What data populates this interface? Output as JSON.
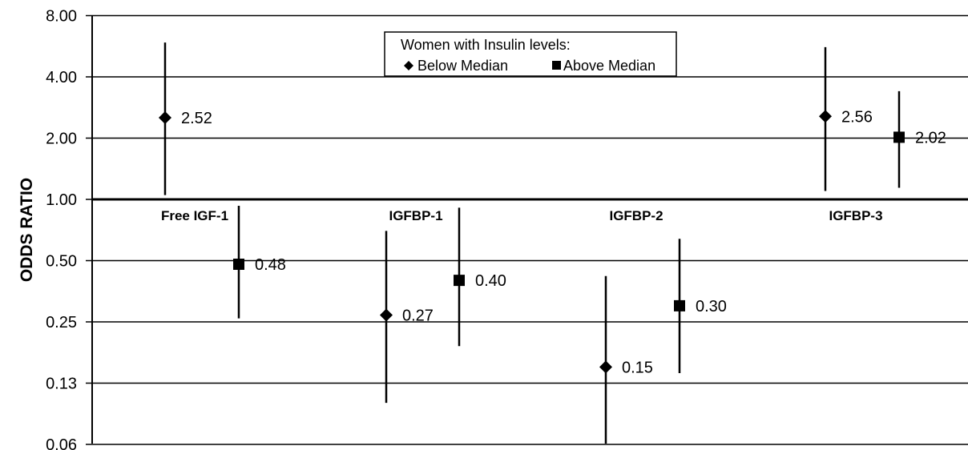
{
  "chart_data": {
    "type": "scatter",
    "ylabel": "ODDS RATIO",
    "yscale": "log",
    "ylim": [
      0.06,
      8.0
    ],
    "y_reference_line": 1.0,
    "y_ticks": [
      8.0,
      4.0,
      2.0,
      1.0,
      0.5,
      0.25,
      0.13,
      0.06
    ],
    "y_tick_labels": [
      "8.00",
      "4.00",
      "2.00",
      "1.00",
      "0.50",
      "0.25",
      "0.13",
      "0.06"
    ],
    "grid": true,
    "categories": [
      "Free IGF-1",
      "IGFBP-1",
      "IGFBP-2",
      "IGFBP-3"
    ],
    "legend": {
      "title": "Women with Insulin levels:",
      "entries": [
        "Below Median",
        "Above Median"
      ],
      "placement": "top-center"
    },
    "series": [
      {
        "name": "Below Median",
        "marker": "diamond",
        "points": [
          {
            "category": "Free IGF-1",
            "value": 2.52,
            "label": "2.52",
            "ci": [
              1.05,
              5.9
            ]
          },
          {
            "category": "IGFBP-1",
            "value": 0.27,
            "label": "0.27",
            "ci": [
              0.1,
              0.7
            ]
          },
          {
            "category": "IGFBP-2",
            "value": 0.15,
            "label": "0.15",
            "ci": [
              0.06,
              0.42
            ]
          },
          {
            "category": "IGFBP-3",
            "value": 2.56,
            "label": "2.56",
            "ci": [
              1.1,
              5.6
            ]
          }
        ]
      },
      {
        "name": "Above Median",
        "marker": "square",
        "points": [
          {
            "category": "Free IGF-1",
            "value": 0.48,
            "label": "0.48",
            "ci": [
              0.26,
              0.93
            ]
          },
          {
            "category": "IGFBP-1",
            "value": 0.4,
            "label": "0.40",
            "ci": [
              0.19,
              0.91
            ]
          },
          {
            "category": "IGFBP-2",
            "value": 0.3,
            "label": "0.30",
            "ci": [
              0.14,
              0.64
            ]
          },
          {
            "category": "IGFBP-3",
            "value": 2.02,
            "label": "2.02",
            "ci": [
              1.14,
              3.4
            ]
          }
        ]
      }
    ]
  }
}
